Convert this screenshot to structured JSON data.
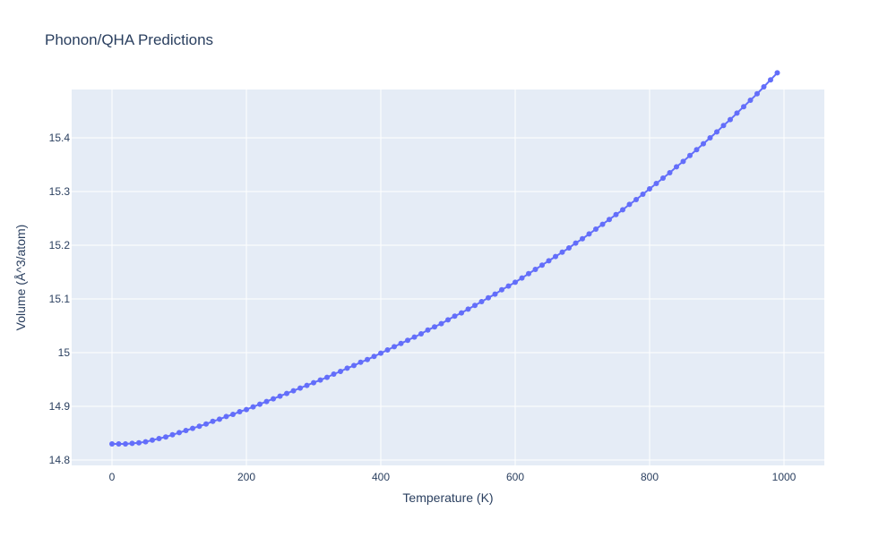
{
  "chart_data": {
    "type": "line",
    "title": "Phonon/QHA Predictions",
    "xlabel": "Temperature (K)",
    "ylabel": "Volume (Å^3/atom)",
    "xlim": [
      -60,
      1060
    ],
    "ylim": [
      14.79,
      15.49
    ],
    "xticks": [
      0,
      200,
      400,
      600,
      800,
      1000
    ],
    "xtick_labels": [
      "0",
      "200",
      "400",
      "600",
      "800",
      "1000"
    ],
    "yticks": [
      14.8,
      14.9,
      15.0,
      15.1,
      15.2,
      15.3,
      15.4
    ],
    "ytick_labels": [
      "14.8",
      "14.9",
      "15",
      "15.1",
      "15.2",
      "15.3",
      "15.4"
    ],
    "grid": true,
    "legend": "none",
    "colors": {
      "series": "#636efa",
      "plot_bg": "#e5ecf6",
      "grid": "#ffffff",
      "text": "#2a3f5f"
    },
    "series": [
      {
        "mode": "lines+markers",
        "x": [
          0,
          10,
          20,
          30,
          40,
          50,
          60,
          70,
          80,
          90,
          100,
          110,
          120,
          130,
          140,
          150,
          160,
          170,
          180,
          190,
          200,
          210,
          220,
          230,
          240,
          250,
          260,
          270,
          280,
          290,
          300,
          310,
          320,
          330,
          340,
          350,
          360,
          370,
          380,
          390,
          400,
          410,
          420,
          430,
          440,
          450,
          460,
          470,
          480,
          490,
          500,
          510,
          520,
          530,
          540,
          550,
          560,
          570,
          580,
          590,
          600,
          610,
          620,
          630,
          640,
          650,
          660,
          670,
          680,
          690,
          700,
          710,
          720,
          730,
          740,
          750,
          760,
          770,
          780,
          790,
          800,
          810,
          820,
          830,
          840,
          850,
          860,
          870,
          880,
          890,
          900,
          910,
          920,
          930,
          940,
          950,
          960,
          970,
          980,
          990
        ],
        "y": [
          14.83,
          14.83,
          14.83,
          14.831,
          14.832,
          14.834,
          14.837,
          14.84,
          14.843,
          14.847,
          14.851,
          14.855,
          14.859,
          14.863,
          14.867,
          14.872,
          14.876,
          14.881,
          14.885,
          14.89,
          14.894,
          14.899,
          14.904,
          14.909,
          14.914,
          14.919,
          14.924,
          14.929,
          14.934,
          14.939,
          14.944,
          14.949,
          14.954,
          14.96,
          14.965,
          14.971,
          14.976,
          14.982,
          14.987,
          14.993,
          14.999,
          15.005,
          15.011,
          15.017,
          15.023,
          15.029,
          15.035,
          15.042,
          15.048,
          15.054,
          15.061,
          15.068,
          15.074,
          15.081,
          15.088,
          15.095,
          15.102,
          15.109,
          15.117,
          15.124,
          15.131,
          15.139,
          15.147,
          15.155,
          15.163,
          15.171,
          15.179,
          15.187,
          15.195,
          15.204,
          15.212,
          15.221,
          15.23,
          15.239,
          15.248,
          15.257,
          15.266,
          15.276,
          15.285,
          15.295,
          15.305,
          15.315,
          15.325,
          15.335,
          15.346,
          15.356,
          15.367,
          15.378,
          15.389,
          15.4,
          15.411,
          15.423,
          15.434,
          15.446,
          15.458,
          15.47,
          15.482,
          15.495,
          15.508,
          15.521
        ]
      }
    ]
  }
}
